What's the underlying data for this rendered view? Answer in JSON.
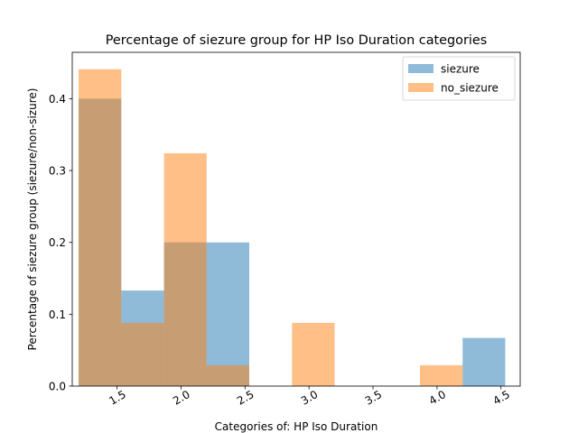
{
  "chart_data": {
    "type": "bar",
    "title": "Percentage of siezure group for HP Iso Duration categories",
    "xlabel": "Categories of: HP Iso Duration",
    "ylabel": "Percentage of siezure group (siezure/non-sizure)",
    "xlim": [
      1.15,
      4.65
    ],
    "ylim": [
      0,
      0.4645
    ],
    "xticks": [
      1.5,
      2.0,
      2.5,
      3.0,
      3.5,
      4.0,
      4.5
    ],
    "xtick_labels": [
      "1.5",
      "2.0",
      "2.5",
      "3.0",
      "3.5",
      "4.0",
      "4.5"
    ],
    "xtick_rotation": 30,
    "yticks": [
      0.0,
      0.1,
      0.2,
      0.3,
      0.4
    ],
    "ytick_labels": [
      "0.0",
      "0.1",
      "0.2",
      "0.3",
      "0.4"
    ],
    "bin_edges": [
      1.2,
      1.533,
      1.867,
      2.2,
      2.533,
      2.867,
      3.2,
      3.533,
      3.867,
      4.2,
      4.533
    ],
    "legend_position": "top-right",
    "grid": false,
    "series": [
      {
        "name": "siezure",
        "color": "#1f77b4",
        "alpha": 0.5,
        "values": [
          0.4,
          0.133,
          0.2,
          0.2,
          0.0,
          0.0,
          0.0,
          0.0,
          0.0,
          0.067
        ]
      },
      {
        "name": "no_siezure",
        "color": "#ff7f0e",
        "alpha": 0.5,
        "values": [
          0.441,
          0.088,
          0.324,
          0.029,
          0.0,
          0.088,
          0.0,
          0.0,
          0.029,
          0.0
        ]
      }
    ]
  }
}
